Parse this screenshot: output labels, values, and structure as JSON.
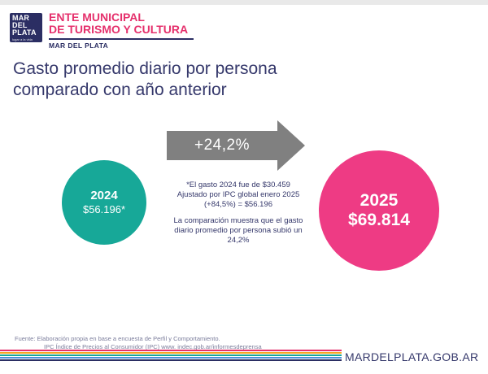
{
  "header": {
    "logo": {
      "line1": "MAR",
      "line2": "DEL",
      "line3": "PLATA",
      "tagline": "lugar a la vida"
    },
    "org_name_line1": "ENTE MUNICIPAL",
    "org_name_line2": "DE TURISMO Y CULTURA",
    "org_subtitle": "MAR DEL PLATA"
  },
  "title": {
    "line1": "Gasto promedio diario por persona",
    "line2": "comparado con año anterior"
  },
  "arrow": {
    "label": "+24,2%",
    "color": "#808080"
  },
  "left_circle": {
    "year": "2024",
    "amount": "$56.196*",
    "color": "#17a898"
  },
  "right_circle": {
    "year": "2025",
    "amount": "$69.814",
    "color": "#ee3b84"
  },
  "notes": {
    "line1": "*El gasto 2024 fue de $30.459",
    "line2": "Ajustado por IPC global enero 2025",
    "line3": "(+84,5%) = $56.196",
    "line4": "La comparación muestra que el gasto",
    "line5": "diario promedio por persona subió un",
    "line6": "24,2%"
  },
  "footer": {
    "source_line1": "Fuente: Elaboración propia en base a encuesta de Perfil y Comportamiento.",
    "source_line2": "IPC Índice de Precios al Consumidor (IPC) www. indec.gob.ar/informesdeprensa",
    "url": "MARDELPLATA.GOB.AR",
    "stripe_colors": [
      "#e5306c",
      "#f5a623",
      "#17a898",
      "#4a90d9",
      "#2b2e63"
    ]
  }
}
